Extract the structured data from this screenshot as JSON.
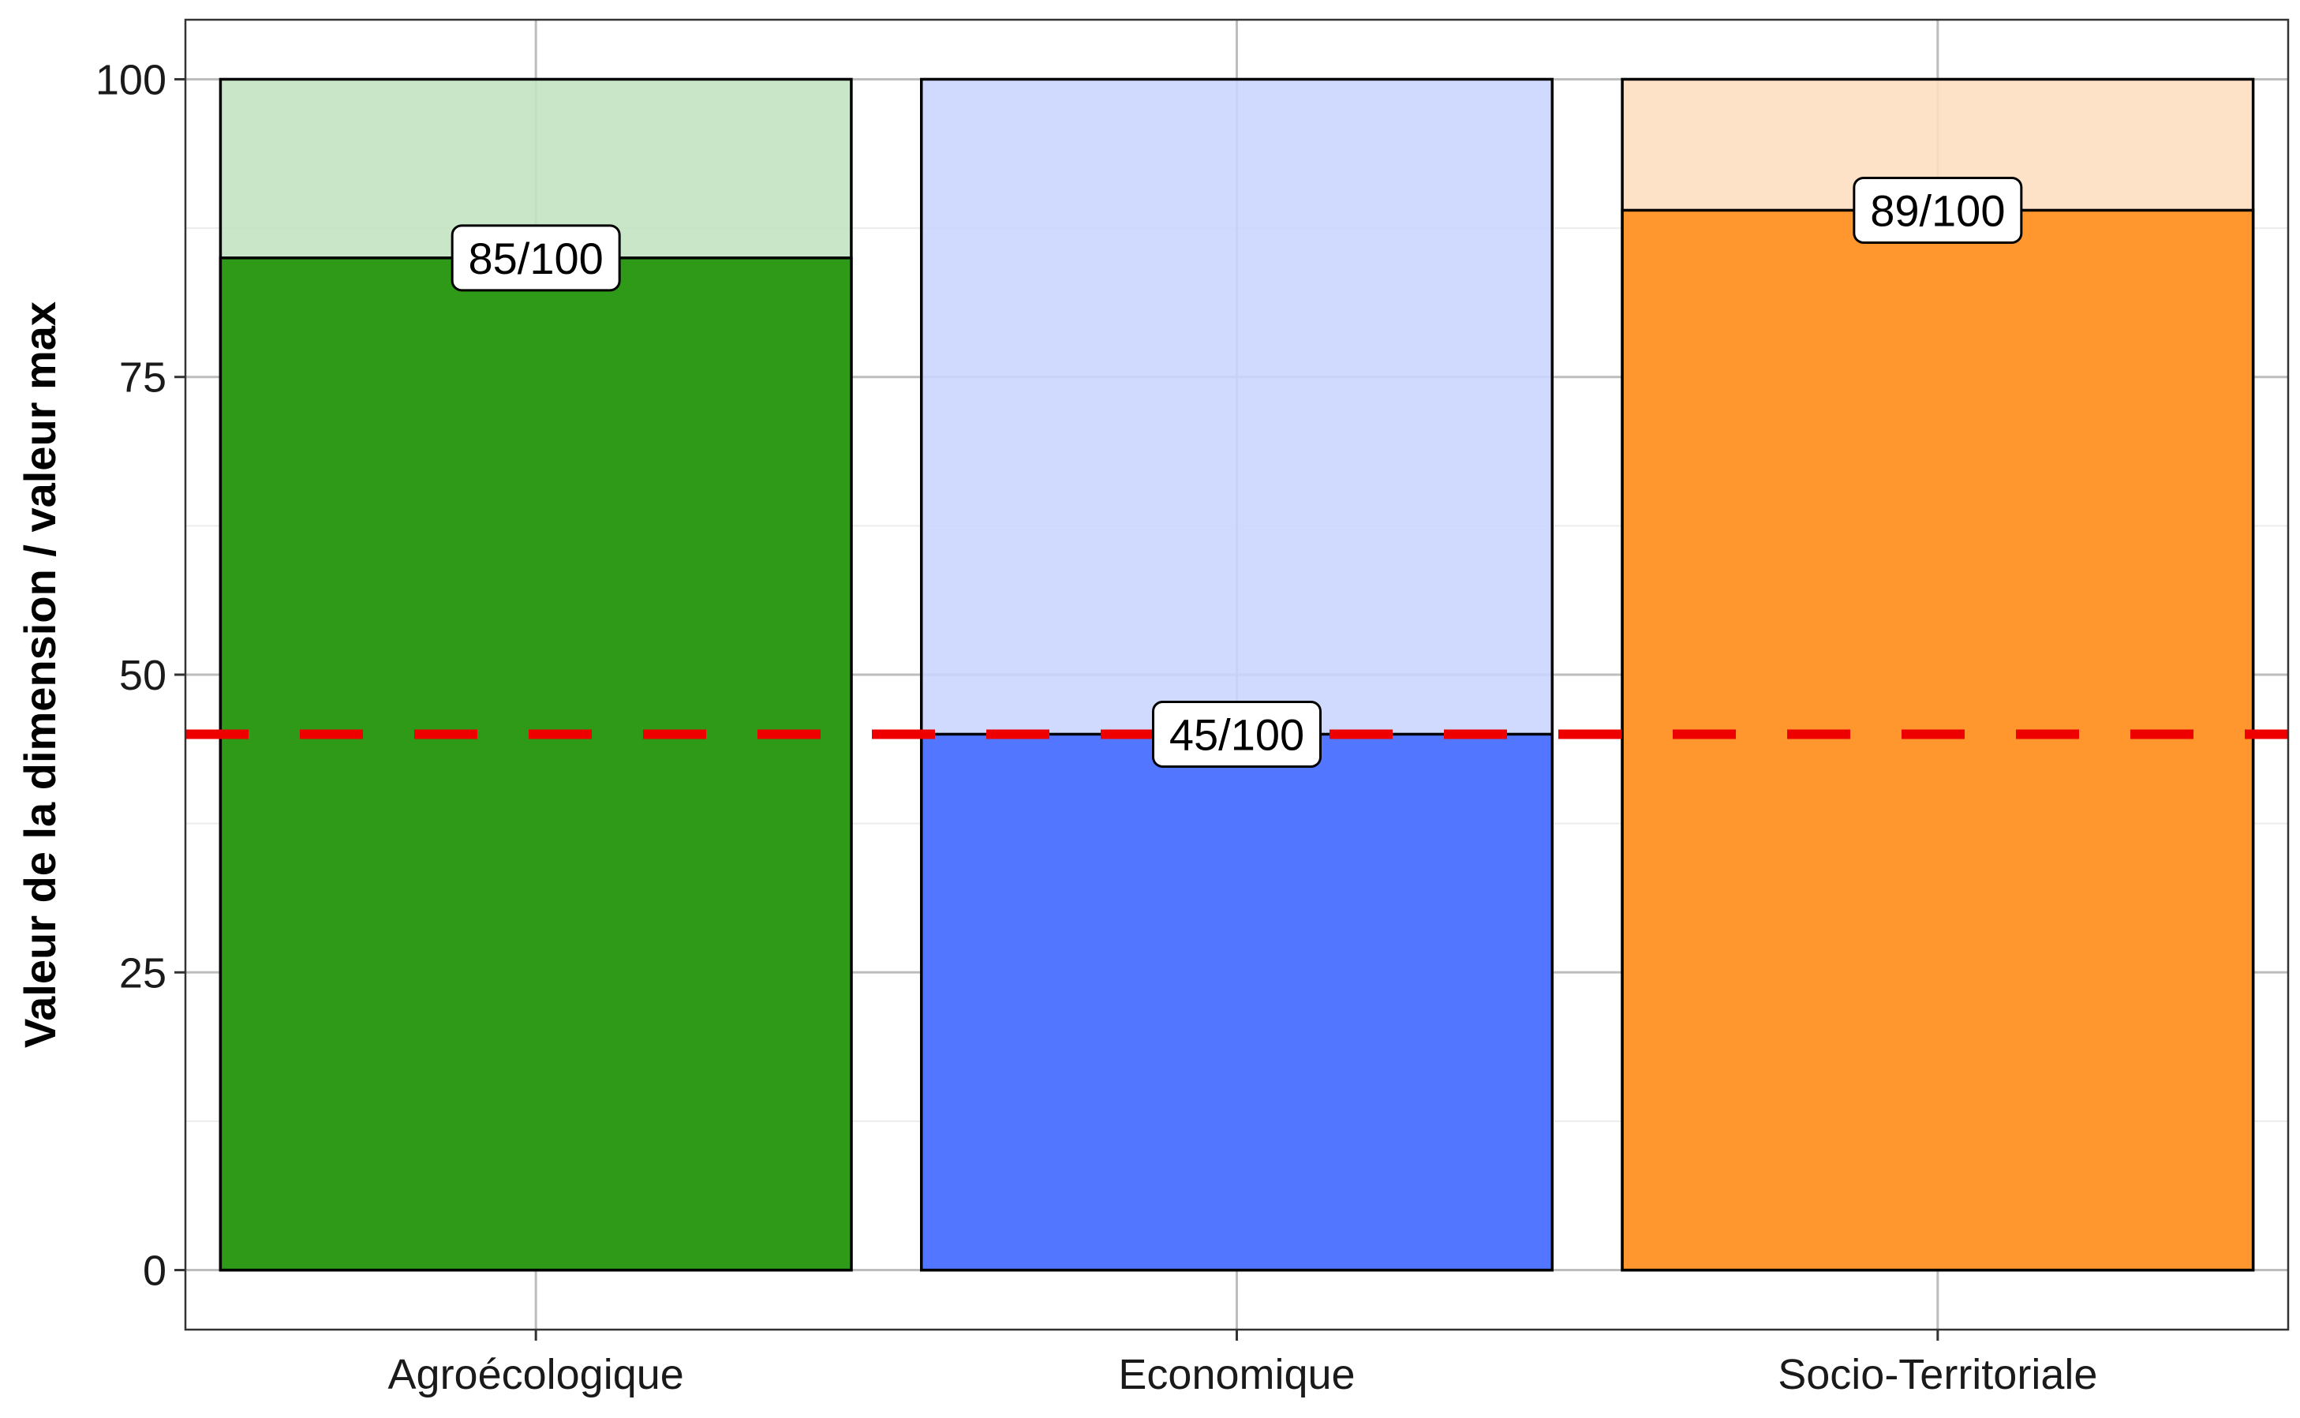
{
  "chart_data": {
    "type": "bar",
    "title": "",
    "xlabel": "",
    "ylabel": "Valeur de la dimension / valeur max",
    "categories": [
      "Agroécologique",
      "Economique",
      "Socio-Territoriale"
    ],
    "values": [
      85,
      45,
      89
    ],
    "max_values": [
      100,
      100,
      100
    ],
    "value_labels": [
      "85/100",
      "45/100",
      "89/100"
    ],
    "ylim": [
      -5,
      105
    ],
    "yticks": [
      0,
      25,
      50,
      75,
      100
    ],
    "ytick_labels": [
      "0",
      "25",
      "50",
      "75",
      "100"
    ],
    "reference_line": {
      "value": 45,
      "style": "dashed",
      "color": "#ee0000"
    },
    "grid": true,
    "legend": "none",
    "colors": {
      "fill": [
        "#2e9a17",
        "#5276ff",
        "#ff962e"
      ],
      "background_fill": [
        "#c3e2c0",
        "#cad5ff",
        "#fedebf"
      ],
      "outline": "#000000",
      "grid_major": "#bdbdbd",
      "grid_minor": "#ececec"
    }
  }
}
